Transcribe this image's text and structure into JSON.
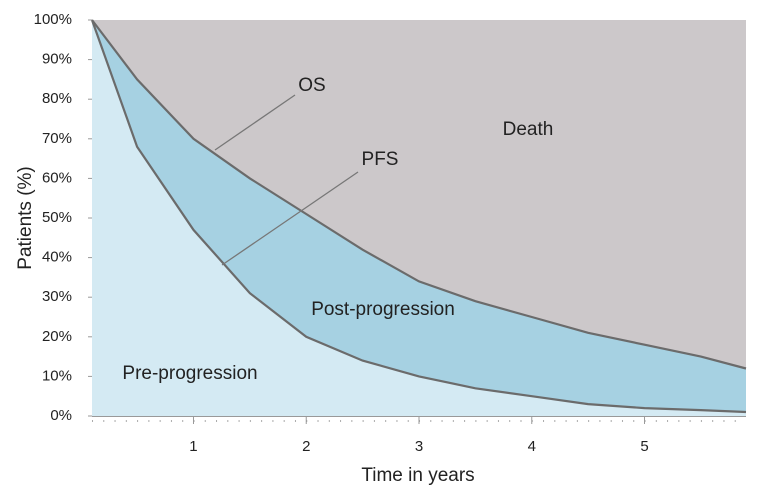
{
  "chart_data": {
    "type": "area",
    "x_label": "Time in years",
    "y_label": "Patients (%)",
    "x": [
      0.1,
      0.5,
      1,
      1.5,
      2,
      2.5,
      3,
      3.5,
      4,
      4.5,
      5,
      5.5,
      5.9
    ],
    "series": [
      {
        "name": "OS",
        "color": "#a6d1e2",
        "values": [
          100,
          85,
          70,
          60,
          51,
          42,
          34,
          29,
          25,
          21,
          18,
          15,
          12
        ]
      },
      {
        "name": "PFS",
        "color": "#d4eaf3",
        "values": [
          100,
          68,
          47,
          31,
          20,
          14,
          10,
          7,
          5,
          3,
          2,
          1.5,
          1
        ]
      }
    ],
    "annotations": [
      "Death",
      "Post-progression",
      "Pre-progression"
    ],
    "plot_background": "#ccc8ca",
    "line_color": "#6b6b6b",
    "xlim": [
      0.1,
      5.9
    ],
    "xticks": [
      1,
      2,
      3,
      4,
      5
    ],
    "ylim": [
      0,
      100
    ],
    "yticks": [
      {
        "value": 0,
        "label": "0%"
      },
      {
        "value": 10,
        "label": "10%"
      },
      {
        "value": 20,
        "label": "20%"
      },
      {
        "value": 30,
        "label": "30%"
      },
      {
        "value": 40,
        "label": "40%"
      },
      {
        "value": 50,
        "label": "50%"
      },
      {
        "value": 60,
        "label": "60%"
      },
      {
        "value": 70,
        "label": "70%"
      },
      {
        "value": 80,
        "label": "80%"
      },
      {
        "value": 90,
        "label": "90%"
      },
      {
        "value": 100,
        "label": "100%"
      }
    ]
  }
}
